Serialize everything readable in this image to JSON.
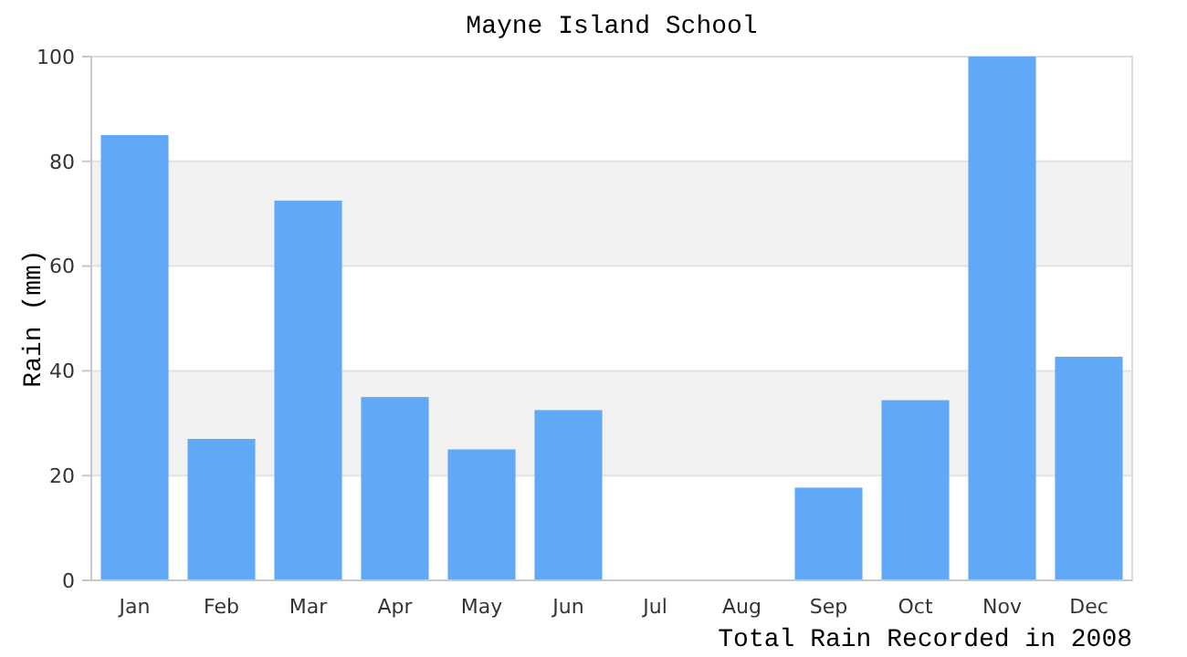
{
  "chart_data": {
    "type": "bar",
    "title": "Mayne Island School",
    "xlabel": "Total Rain Recorded in 2008",
    "ylabel": "Rain (mm)",
    "categories": [
      "Jan",
      "Feb",
      "Mar",
      "Apr",
      "May",
      "Jun",
      "Jul",
      "Aug",
      "Sep",
      "Oct",
      "Nov",
      "Dec"
    ],
    "values": [
      85,
      27,
      72.5,
      35,
      25,
      32.5,
      0,
      0,
      17.7,
      34.4,
      100,
      42.7
    ],
    "color": "#60a9f6",
    "ylim": [
      0,
      100
    ],
    "yticks": [
      0,
      20,
      40,
      60,
      80,
      100
    ],
    "grid": true
  }
}
